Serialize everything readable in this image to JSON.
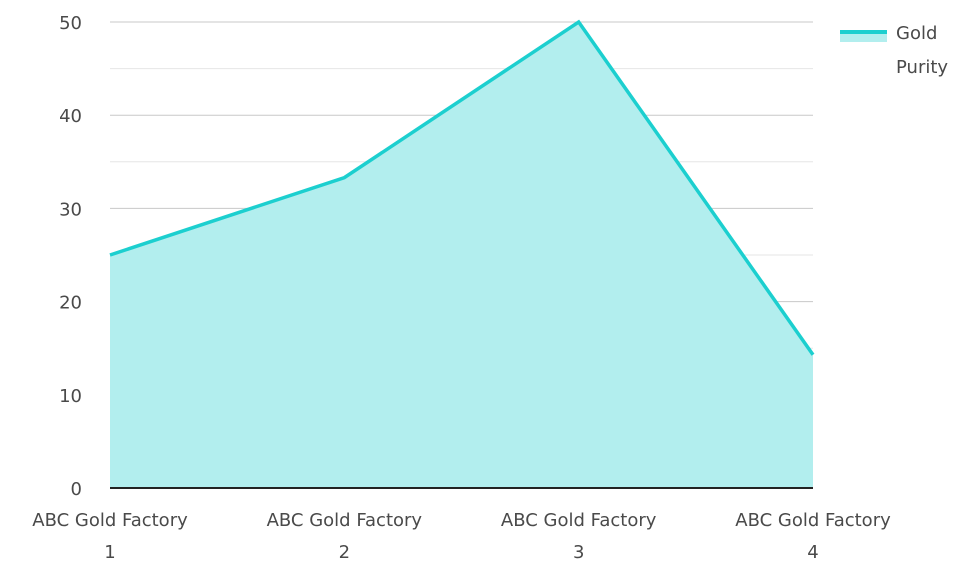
{
  "chart_data": {
    "type": "area",
    "categories": [
      [
        "ABC Gold Factory",
        "1"
      ],
      [
        "ABC Gold Factory",
        "2"
      ],
      [
        "ABC Gold Factory",
        "3"
      ],
      [
        "ABC Gold Factory",
        "4"
      ]
    ],
    "series": [
      {
        "name": "Gold Purity",
        "name_lines": [
          "Gold",
          "Purity"
        ],
        "values": [
          25,
          33.3,
          50,
          14.3
        ],
        "color": "#1ccfcf",
        "fill": "#b2eeee"
      }
    ],
    "y_ticks": [
      0,
      10,
      20,
      30,
      40,
      50
    ],
    "ylim": [
      0,
      50
    ],
    "grid": true,
    "legend_position": "top-right",
    "colors": {
      "major_grid": "#c8c8c8",
      "minor_grid": "#e6e6e6",
      "axis": "#222222",
      "text": "#4a4a4a"
    }
  }
}
